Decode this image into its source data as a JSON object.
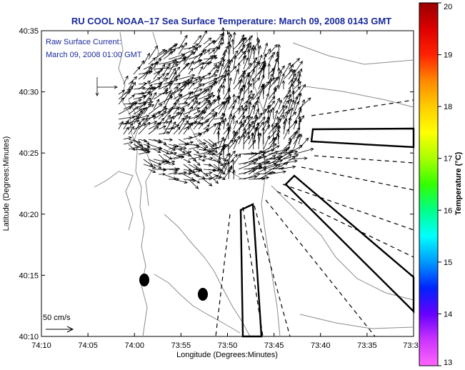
{
  "title": "RU COOL  NOAA–17  Sea Surface Temperature:  March 09, 2008 0143 GMT",
  "annotation": {
    "line1": "Raw Surface Current:",
    "line2": "March 09, 2008 01:00 GMT"
  },
  "scale_label": "50 cm/s",
  "xaxis": {
    "label": "Longitude (Degrees:Minutes)",
    "ticks": [
      "74:10",
      "74:05",
      "74:00",
      "73:55",
      "73:50",
      "73:45",
      "73:40",
      "73:35",
      "73:3"
    ]
  },
  "yaxis": {
    "label": "Latitude (Degrees:Minutes)",
    "ticks": [
      "40:35",
      "40:30",
      "40:25",
      "40:20",
      "40:15",
      "40:10"
    ]
  },
  "colorbar": {
    "label": "Temperature (°C)",
    "ticks": [
      "20",
      "19",
      "18",
      "17",
      "16",
      "15",
      "14",
      "13"
    ],
    "min": 13,
    "max": 20,
    "colors": [
      "#ff66ff",
      "#cc33ff",
      "#6600ff",
      "#0022ff",
      "#0099ff",
      "#00ffff",
      "#00ff88",
      "#33ff00",
      "#aaff00",
      "#ffff00",
      "#ffcc00",
      "#ff8800",
      "#ff2200",
      "#dd0000",
      "#990000"
    ]
  },
  "colors": {
    "title": "#1a2a9a",
    "contour": "#8c8c8c",
    "vector": "#000000"
  }
}
